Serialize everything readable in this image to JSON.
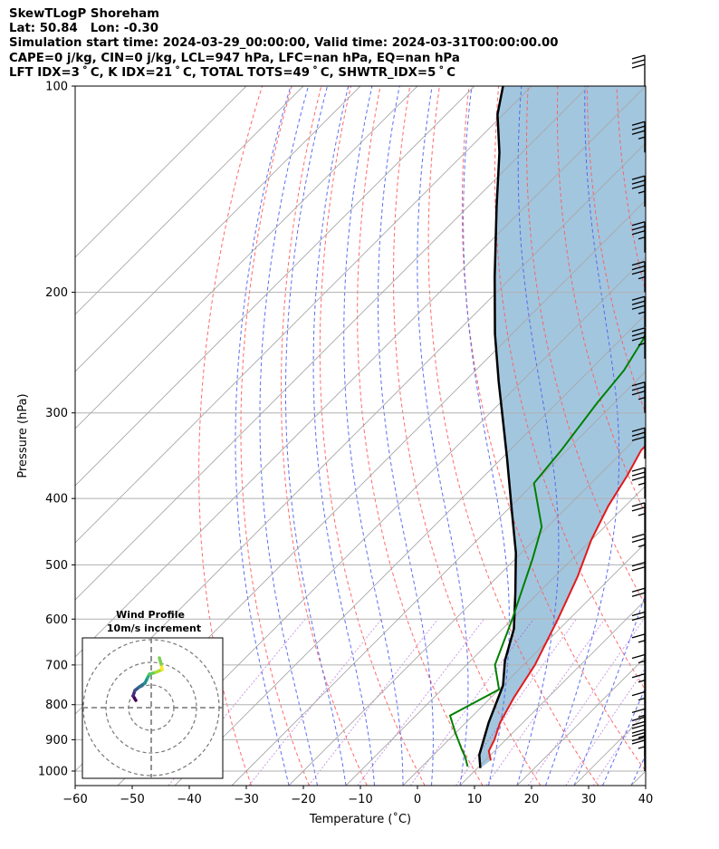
{
  "header": {
    "line1": "SkewTLogP Shoreham",
    "line2": "Lat: 50.84   Lon: -0.30",
    "line3": "Simulation start time: 2024-03-29_00:00:00, Valid time: 2024-03-31T00:00:00.00",
    "line4": "CAPE=0 j/kg, CIN=0 j/kg, LCL=947 hPa, LFC=nan hPa, EQ=nan hPa",
    "line5": "LFT IDX=3 ˚ C, K IDX=21 ˚ C, TOTAL TOTS=49 ˚ C, SHWTR_IDX=5 ˚ C"
  },
  "chart_data": {
    "type": "skewt",
    "xlabel": "Temperature (˚C)",
    "ylabel": "Pressure (hPa)",
    "xlim": [
      -60,
      40
    ],
    "ylim": [
      1050,
      100
    ],
    "y_scale": "log",
    "grid": true,
    "x_ticks": [
      "−60",
      "−50",
      "−40",
      "−30",
      "−20",
      "−10",
      "0",
      "10",
      "20",
      "30",
      "40"
    ],
    "y_ticks": [
      "100",
      "200",
      "300",
      "400",
      "500",
      "600",
      "700",
      "800",
      "900",
      "1000"
    ],
    "temperature": {
      "color": "#e41a1c",
      "points": [
        [
          11,
          965
        ],
        [
          9,
          935
        ],
        [
          8,
          900
        ],
        [
          6,
          850
        ],
        [
          4,
          780
        ],
        [
          2,
          700
        ],
        [
          -2,
          600
        ],
        [
          -6,
          520
        ],
        [
          -10,
          460
        ],
        [
          -13,
          410
        ],
        [
          -15,
          370
        ],
        [
          -17,
          340
        ],
        [
          -17,
          300
        ],
        [
          -16,
          270
        ],
        [
          -14,
          240
        ],
        [
          -10,
          215
        ],
        [
          -5,
          190
        ],
        [
          -1,
          165
        ],
        [
          1,
          150
        ],
        [
          2,
          130
        ],
        [
          4,
          115
        ],
        [
          6,
          100
        ]
      ]
    },
    "dewpoint": {
      "color": "#008000",
      "points": [
        [
          8,
          985
        ],
        [
          6,
          955
        ],
        [
          4,
          930
        ],
        [
          0,
          880
        ],
        [
          -4,
          830
        ],
        [
          0,
          760
        ],
        [
          -5,
          700
        ],
        [
          -10,
          600
        ],
        [
          -17,
          490
        ],
        [
          -21,
          440
        ],
        [
          -30,
          380
        ],
        [
          -31,
          340
        ],
        [
          -33,
          290
        ],
        [
          -34,
          260
        ],
        [
          -36,
          235
        ],
        [
          -40,
          205
        ],
        [
          -43,
          185
        ],
        [
          -42,
          150
        ],
        [
          -40,
          120
        ],
        [
          -38,
          100
        ]
      ]
    },
    "parcel": {
      "color": "#000000",
      "points": [
        [
          10.5,
          990
        ],
        [
          8,
          947
        ],
        [
          4,
          850
        ],
        [
          0,
          750
        ],
        [
          -4,
          690
        ],
        [
          -8,
          620
        ],
        [
          -14,
          550
        ],
        [
          -21,
          480
        ],
        [
          -30,
          410
        ],
        [
          -39,
          350
        ],
        [
          -46,
          310
        ],
        [
          -54,
          270
        ],
        [
          -63,
          230
        ],
        [
          -73,
          190
        ],
        [
          -85,
          150
        ],
        [
          -94,
          125
        ],
        [
          -101,
          110
        ],
        [
          -105,
          100
        ]
      ]
    },
    "wind_barbs": {
      "pressures": [
        1000,
        975,
        950,
        925,
        900,
        850,
        800,
        750,
        700,
        650,
        600,
        550,
        500,
        450,
        400,
        350,
        300,
        250,
        225,
        200,
        175,
        150,
        125,
        100
      ],
      "speed_kt": [
        15,
        20,
        25,
        20,
        15,
        15,
        15,
        15,
        15,
        20,
        20,
        20,
        25,
        25,
        35,
        30,
        35,
        35,
        35,
        35,
        35,
        35,
        35,
        30
      ]
    },
    "hodograph": {
      "title": "Wind Profile",
      "subtitle": "10m/s increment"
    }
  }
}
